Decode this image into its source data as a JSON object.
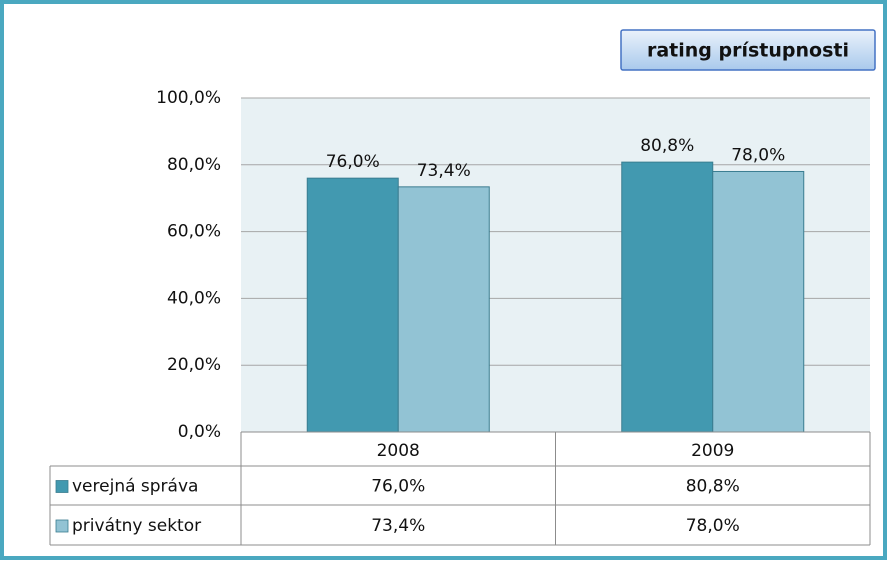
{
  "chart_data": {
    "type": "bar",
    "title": "rating prístupnosti",
    "categories": [
      "2008",
      "2009"
    ],
    "series": [
      {
        "name": "verejná správa",
        "color": "#4299b0",
        "values": [
          76.0,
          80.8
        ],
        "value_labels": [
          "76,0%",
          "80,8%"
        ]
      },
      {
        "name": "privátny sektor",
        "color": "#92c3d4",
        "values": [
          73.4,
          78.0
        ],
        "value_labels": [
          "73,4%",
          "78,0%"
        ]
      }
    ],
    "ylim": [
      0,
      100
    ],
    "yticks": [
      {
        "value": 0,
        "label": "0,0%"
      },
      {
        "value": 20,
        "label": "20,0%"
      },
      {
        "value": 40,
        "label": "40,0%"
      },
      {
        "value": 60,
        "label": "60,0%"
      },
      {
        "value": 80,
        "label": "80,0%"
      },
      {
        "value": 100,
        "label": "100,0%"
      }
    ],
    "grid": true
  }
}
